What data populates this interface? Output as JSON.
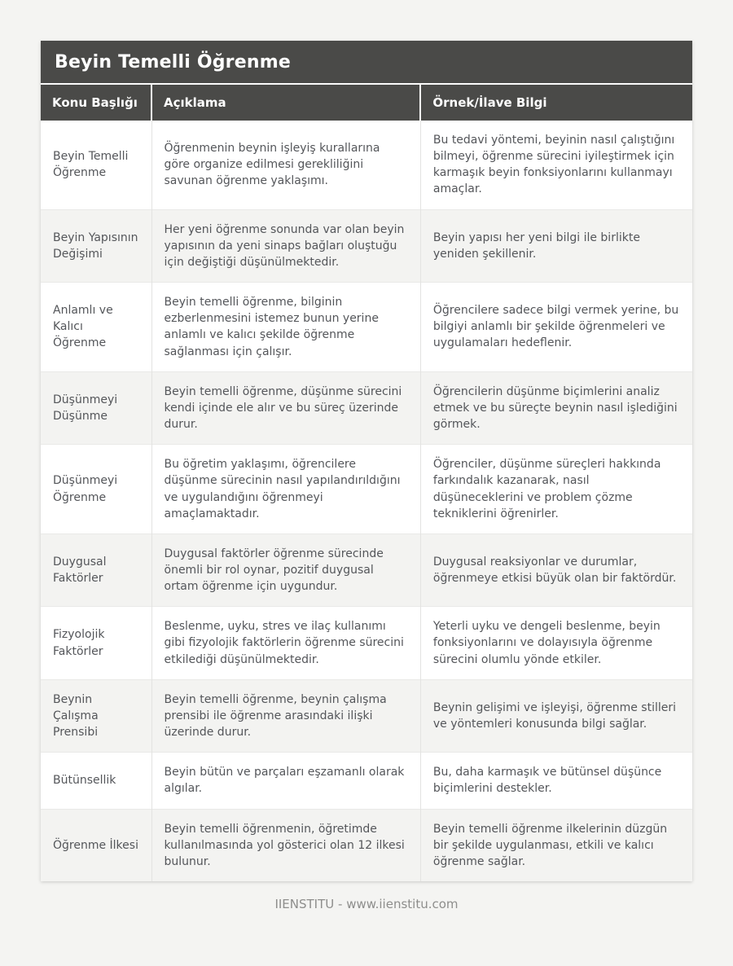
{
  "page": {
    "title": "Beyin Temelli Öğrenme",
    "footer": "IIENSTITU - www.iienstitu.com"
  },
  "colors": {
    "header_bg": "#4a4a48",
    "header_text": "#ffffff",
    "row_stripe_bg": "#f3f3f1",
    "body_text": "#54565a",
    "page_bg": "#f4f4f2",
    "divider": "#e3e3e1"
  },
  "table": {
    "columns": [
      "Konu Başlığı",
      "Açıklama",
      "Örnek/İlave Bilgi"
    ],
    "rows": [
      {
        "topic": "Beyin Temelli Öğrenme",
        "description": "Öğrenmenin beynin işleyiş kurallarına göre organize edilmesi gerekliliğini savunan öğrenme yaklaşımı.",
        "example": "Bu tedavi yöntemi, beyinin nasıl çalıştığını bilmeyi, öğrenme sürecini iyileştirmek için karmaşık beyin fonksiyonlarını kullanmayı amaçlar."
      },
      {
        "topic": "Beyin Yapısının Değişimi",
        "description": "Her yeni öğrenme sonunda var olan beyin yapısının da yeni sinaps bağları oluştuğu için değiştiği düşünülmektedir.",
        "example": "Beyin yapısı her yeni bilgi ile birlikte yeniden şekillenir."
      },
      {
        "topic": "Anlamlı ve Kalıcı Öğrenme",
        "description": "Beyin temelli öğrenme, bilginin ezberlenmesini istemez bunun yerine anlamlı ve kalıcı şekilde öğrenme sağlanması için çalışır.",
        "example": "Öğrencilere sadece bilgi vermek yerine, bu bilgiyi anlamlı bir şekilde öğrenmeleri ve uygulamaları hedeflenir."
      },
      {
        "topic": "Düşünmeyi Düşünme",
        "description": "Beyin temelli öğrenme, düşünme sürecini kendi içinde ele alır ve bu süreç üzerinde durur.",
        "example": "Öğrencilerin düşünme biçimlerini analiz etmek ve bu süreçte beynin nasıl işlediğini görmek."
      },
      {
        "topic": "Düşünmeyi Öğrenme",
        "description": "Bu öğretim yaklaşımı, öğrencilere düşünme sürecinin nasıl yapılandırıldığını ve uygulandığını öğrenmeyi amaçlamaktadır.",
        "example": "Öğrenciler, düşünme süreçleri hakkında farkındalık kazanarak, nasıl düşüneceklerini ve problem çözme tekniklerini öğrenirler."
      },
      {
        "topic": "Duygusal Faktörler",
        "description": "Duygusal faktörler öğrenme sürecinde önemli bir rol oynar, pozitif duygusal ortam öğrenme için uygundur.",
        "example": "Duygusal reaksiyonlar ve durumlar, öğrenmeye etkisi büyük olan bir faktördür."
      },
      {
        "topic": "Fizyolojik Faktörler",
        "description": "Beslenme, uyku, stres ve ilaç kullanımı gibi fizyolojik faktörlerin öğrenme sürecini etkilediği düşünülmektedir.",
        "example": "Yeterli uyku ve dengeli beslenme, beyin fonksiyonlarını ve dolayısıyla öğrenme sürecini olumlu yönde etkiler."
      },
      {
        "topic": "Beynin Çalışma Prensibi",
        "description": "Beyin temelli öğrenme, beynin çalışma prensibi ile öğrenme arasındaki ilişki üzerinde durur.",
        "example": "Beynin gelişimi ve işleyişi, öğrenme stilleri ve yöntemleri konusunda bilgi sağlar."
      },
      {
        "topic": "Bütünsellik",
        "description": "Beyin bütün ve parçaları eşzamanlı olarak algılar.",
        "example": "Bu, daha karmaşık ve bütünsel düşünce biçimlerini destekler."
      },
      {
        "topic": "Öğrenme İlkesi",
        "description": "Beyin temelli öğrenmenin, öğretimde kullanılmasında yol gösterici olan 12 ilkesi bulunur.",
        "example": "Beyin temelli öğrenme ilkelerinin düzgün bir şekilde uygulanması, etkili ve kalıcı öğrenme sağlar."
      }
    ]
  }
}
